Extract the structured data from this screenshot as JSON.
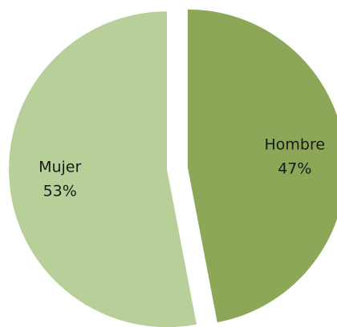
{
  "chart_data": {
    "type": "pie",
    "categories": [
      "Hombre",
      "Mujer"
    ],
    "values": [
      47,
      53
    ],
    "value_labels": [
      "47%",
      "53%"
    ],
    "colors": [
      "#8ba757",
      "#b8cf99"
    ]
  }
}
